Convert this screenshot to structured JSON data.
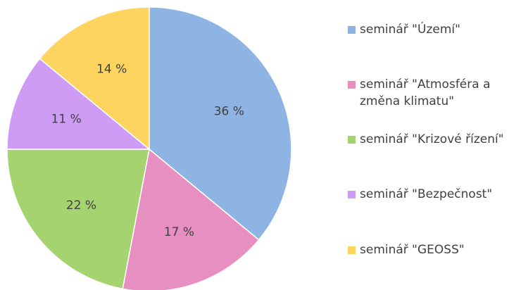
{
  "chart_data": {
    "type": "pie",
    "categories": [
      "seminář \"Území\"",
      "seminář \"Atmosféra a změna klimatu\"",
      "seminář \"Krizové řízení\"",
      "seminář \"Bezpečnost\"",
      "seminář \"GEOSS\""
    ],
    "values": [
      36,
      17,
      22,
      11,
      14
    ],
    "value_labels": [
      "36 %",
      "17 %",
      "22 %",
      "11 %",
      "14 %"
    ],
    "colors": [
      "#8eb4e3",
      "#e88fc2",
      "#a5d36f",
      "#cf9cf5",
      "#fcd45f"
    ]
  }
}
